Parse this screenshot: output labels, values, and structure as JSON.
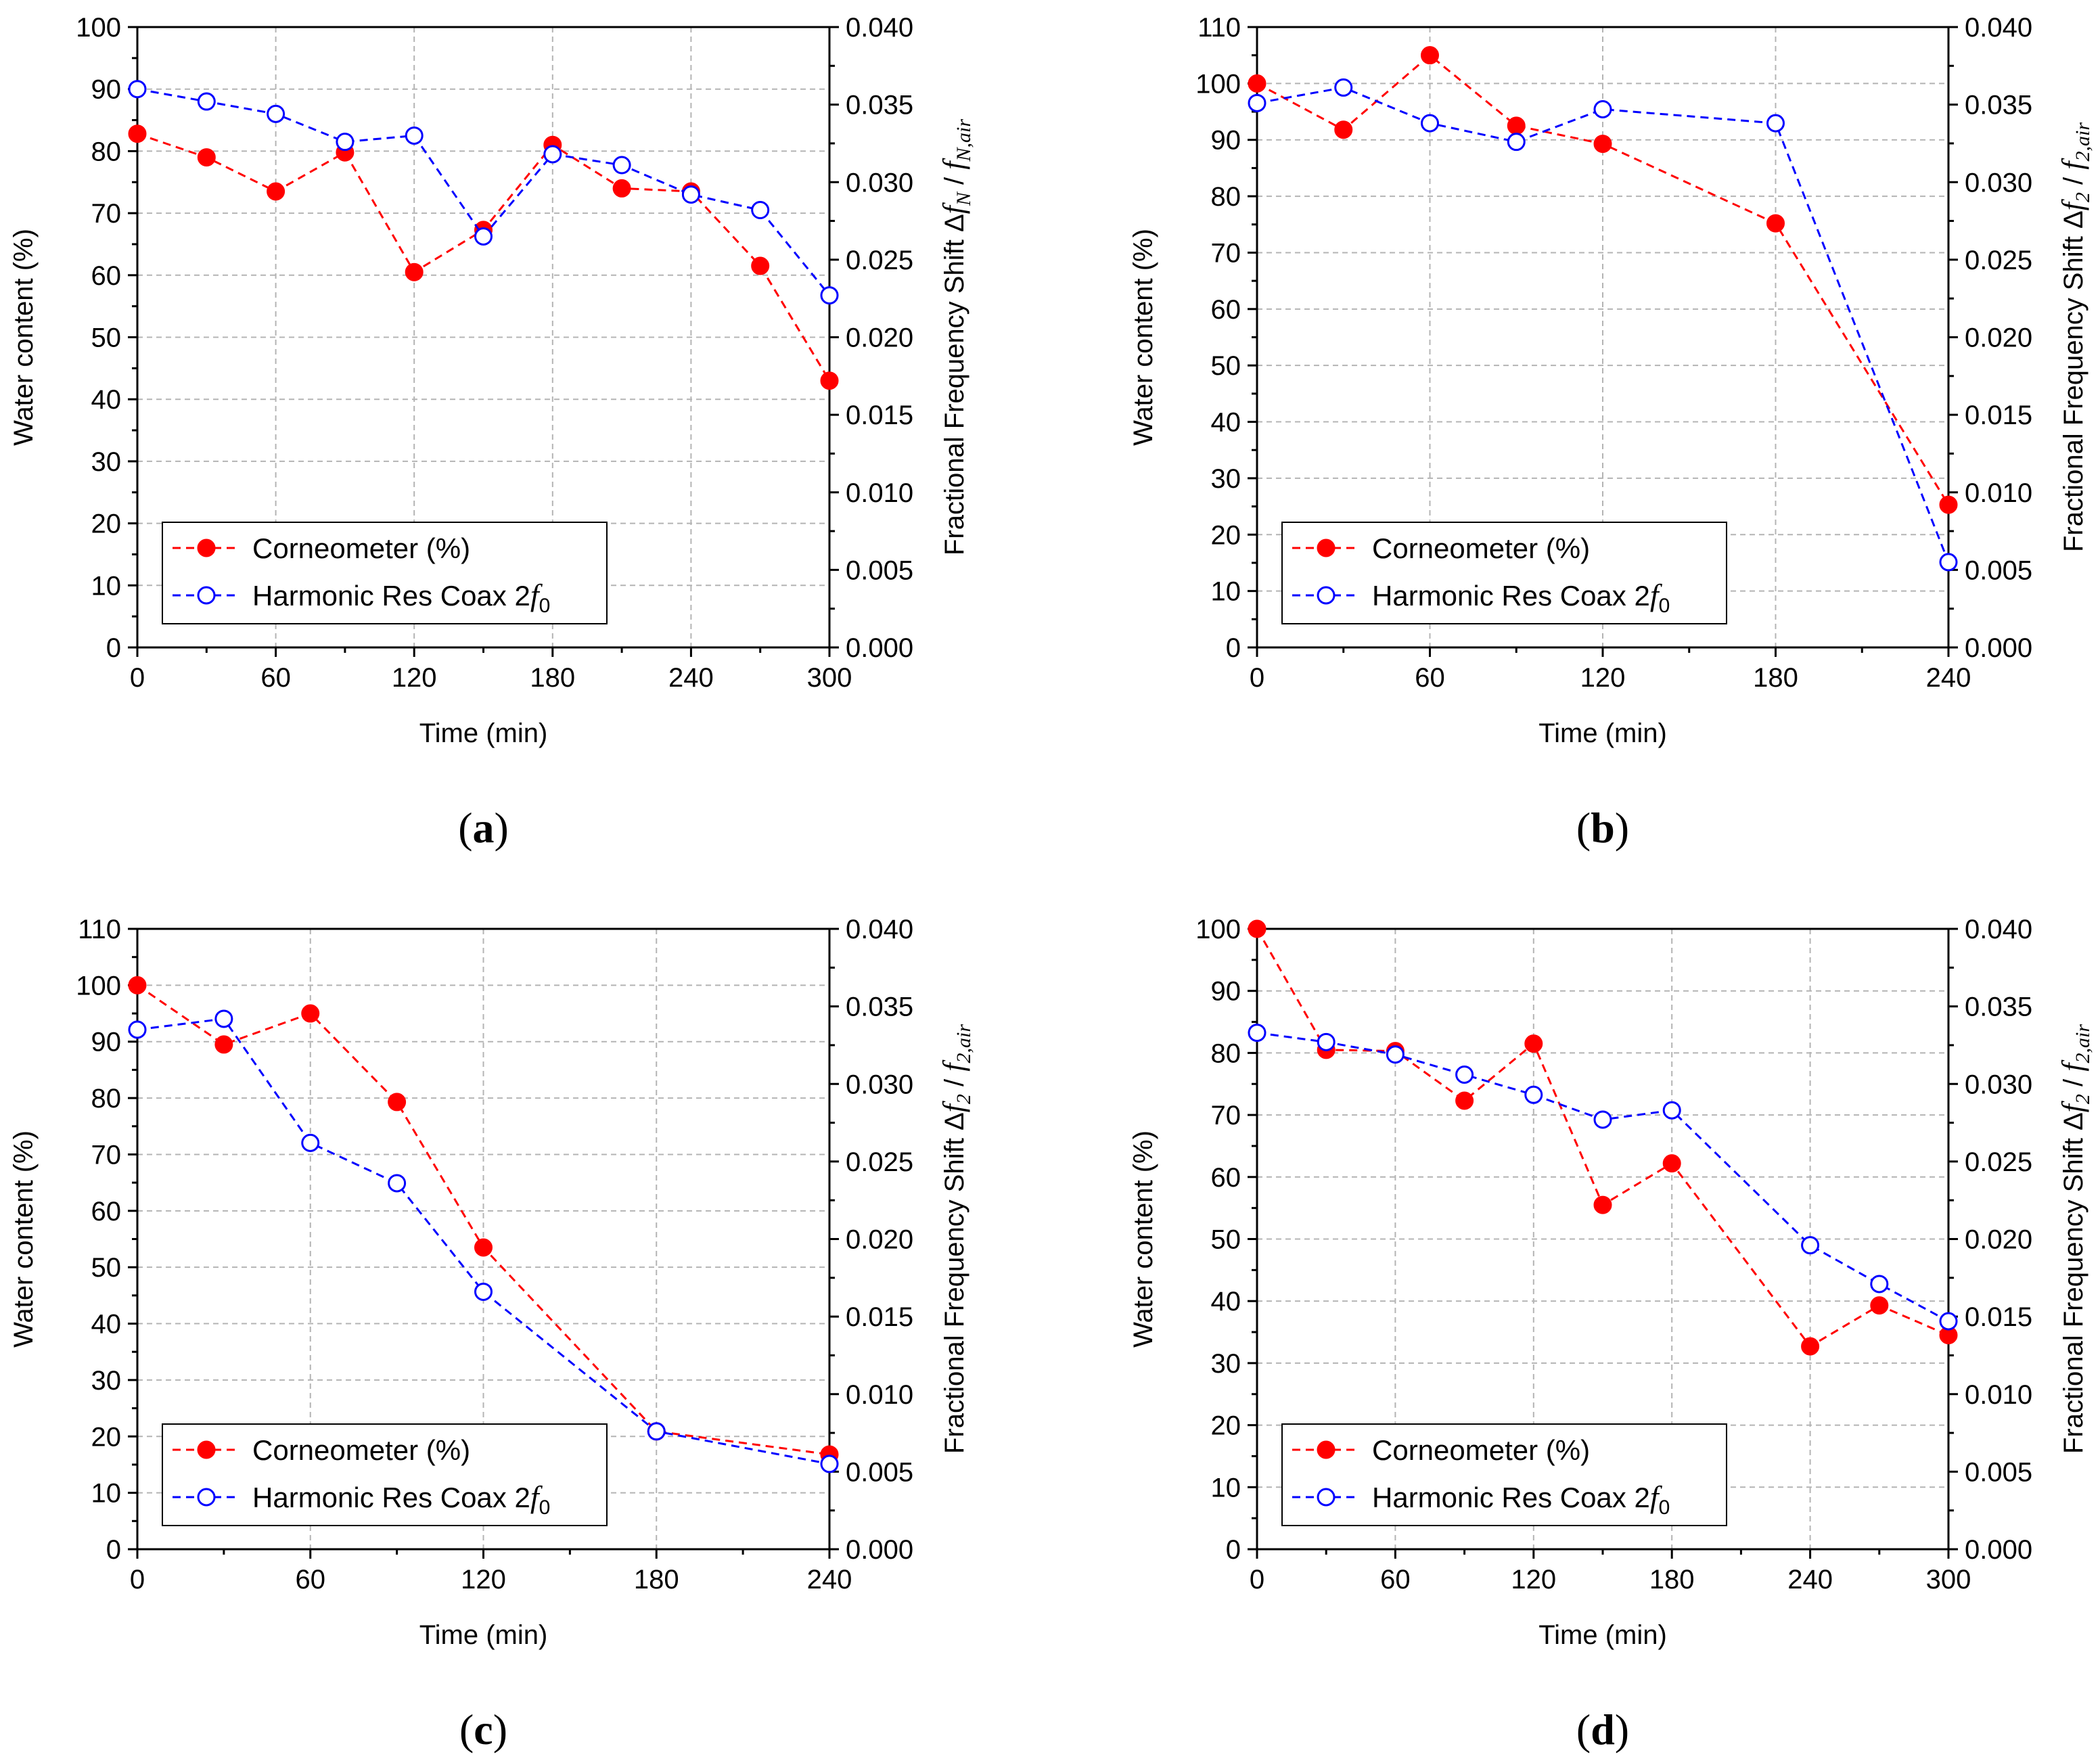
{
  "chart_data": [
    {
      "type": "line",
      "panel_label": "a",
      "xlabel": "Time (min)",
      "ylabel": "Water content (%)",
      "y2label": {
        "prefix": "Fractional Frequency Shift Δ",
        "f1": "f",
        "sub1": "N",
        "sep": " / ",
        "f2": "f",
        "sub2": "N,air"
      },
      "xlim": [
        0,
        300
      ],
      "xticks": [
        0,
        60,
        120,
        180,
        240,
        300
      ],
      "ylim": [
        0,
        100
      ],
      "yticks": [
        0,
        10,
        20,
        30,
        40,
        50,
        60,
        70,
        80,
        90,
        100
      ],
      "y2lim": [
        0,
        0.04
      ],
      "y2ticks": [
        "0.000",
        "0.005",
        "0.010",
        "0.015",
        "0.020",
        "0.025",
        "0.030",
        "0.035",
        "0.040"
      ],
      "grid": true,
      "legend_position": "bottom-left",
      "series": [
        {
          "name": "Corneometer (%)",
          "axis": "left",
          "color": "#ff0000",
          "marker": "filled-circle",
          "x": [
            0,
            30,
            60,
            90,
            120,
            150,
            180,
            210,
            240,
            270,
            300
          ],
          "values": [
            82.8,
            79.0,
            73.5,
            79.8,
            60.5,
            67.3,
            81.0,
            74.0,
            73.5,
            61.5,
            43.0
          ]
        },
        {
          "name": "Harmonic Res Coax 2",
          "name_suffix": "f",
          "name_sub": "0",
          "axis": "right",
          "color": "#0000ff",
          "marker": "open-circle",
          "x": [
            0,
            30,
            60,
            90,
            120,
            150,
            180,
            210,
            240,
            270,
            300
          ],
          "values": [
            0.036,
            0.0352,
            0.0344,
            0.0326,
            0.033,
            0.0265,
            0.0318,
            0.0311,
            0.0292,
            0.0282,
            0.0227
          ]
        }
      ]
    },
    {
      "type": "line",
      "panel_label": "b",
      "xlabel": "Time (min)",
      "ylabel": "Water content (%)",
      "y2label": {
        "prefix": "Fractional Frequency Shift Δ",
        "f1": "f",
        "sub1": "2",
        "sep": " / ",
        "f2": "f",
        "sub2": "2,air"
      },
      "xlim": [
        0,
        240
      ],
      "xticks": [
        0,
        60,
        120,
        180,
        240
      ],
      "ylim": [
        0,
        110
      ],
      "yticks": [
        0,
        10,
        20,
        30,
        40,
        50,
        60,
        70,
        80,
        90,
        100,
        110
      ],
      "y2lim": [
        0,
        0.04
      ],
      "y2ticks": [
        "0.000",
        "0.005",
        "0.010",
        "0.015",
        "0.020",
        "0.025",
        "0.030",
        "0.035",
        "0.040"
      ],
      "grid": true,
      "legend_position": "bottom-left",
      "series": [
        {
          "name": "Corneometer (%)",
          "axis": "left",
          "color": "#ff0000",
          "marker": "filled-circle",
          "x": [
            0,
            30,
            60,
            90,
            120,
            180,
            240
          ],
          "values": [
            100.0,
            91.8,
            105.0,
            92.5,
            89.3,
            75.2,
            25.3
          ]
        },
        {
          "name": "Harmonic Res Coax 2",
          "name_suffix": "f",
          "name_sub": "0",
          "axis": "right",
          "color": "#0000ff",
          "marker": "open-circle",
          "x": [
            0,
            30,
            60,
            90,
            120,
            180,
            240
          ],
          "values": [
            0.0351,
            0.0361,
            0.0338,
            0.0326,
            0.0347,
            0.0338,
            0.0055
          ]
        }
      ]
    },
    {
      "type": "line",
      "panel_label": "c",
      "xlabel": "Time (min)",
      "ylabel": "Water content (%)",
      "y2label": {
        "prefix": "Fractional Frequency Shift Δ",
        "f1": "f",
        "sub1": "2",
        "sep": " / ",
        "f2": "f",
        "sub2": "2,air"
      },
      "xlim": [
        0,
        240
      ],
      "xticks": [
        0,
        60,
        120,
        180,
        240
      ],
      "ylim": [
        0,
        110
      ],
      "yticks": [
        0,
        10,
        20,
        30,
        40,
        50,
        60,
        70,
        80,
        90,
        100,
        110
      ],
      "y2lim": [
        0,
        0.04
      ],
      "y2ticks": [
        "0.000",
        "0.005",
        "0.010",
        "0.015",
        "0.020",
        "0.025",
        "0.030",
        "0.035",
        "0.040"
      ],
      "grid": true,
      "legend_position": "bottom-left",
      "series": [
        {
          "name": "Corneometer (%)",
          "axis": "left",
          "color": "#ff0000",
          "marker": "filled-circle",
          "x": [
            0,
            30,
            60,
            90,
            120,
            180,
            240
          ],
          "values": [
            100.0,
            89.5,
            95.0,
            79.3,
            53.5,
            20.9,
            16.8
          ]
        },
        {
          "name": "Harmonic Res Coax 2",
          "name_suffix": "f",
          "name_sub": "0",
          "axis": "right",
          "color": "#0000ff",
          "marker": "open-circle",
          "x": [
            0,
            30,
            60,
            90,
            120,
            180,
            240
          ],
          "values": [
            0.0335,
            0.0342,
            0.0262,
            0.0236,
            0.0166,
            0.0076,
            0.0055
          ]
        }
      ]
    },
    {
      "type": "line",
      "panel_label": "d",
      "xlabel": "Time (min)",
      "ylabel": "Water content (%)",
      "y2label": {
        "prefix": "Fractional Frequency Shift Δ",
        "f1": "f",
        "sub1": "2",
        "sep": " / ",
        "f2": "f",
        "sub2": "2,air"
      },
      "xlim": [
        0,
        300
      ],
      "xticks": [
        0,
        60,
        120,
        180,
        240,
        300
      ],
      "ylim": [
        0,
        100
      ],
      "yticks": [
        0,
        10,
        20,
        30,
        40,
        50,
        60,
        70,
        80,
        90,
        100
      ],
      "y2lim": [
        0,
        0.04
      ],
      "y2ticks": [
        "0.000",
        "0.005",
        "0.010",
        "0.015",
        "0.020",
        "0.025",
        "0.030",
        "0.035",
        "0.040"
      ],
      "grid": true,
      "legend_position": "bottom-left",
      "series": [
        {
          "name": "Corneometer (%)",
          "axis": "left",
          "color": "#ff0000",
          "marker": "filled-circle",
          "x": [
            0,
            30,
            60,
            90,
            120,
            150,
            180,
            240,
            270,
            300
          ],
          "values": [
            100.0,
            80.5,
            80.3,
            72.3,
            81.5,
            55.5,
            62.2,
            32.7,
            39.3,
            34.5
          ]
        },
        {
          "name": "Harmonic Res Coax 2",
          "name_suffix": "f",
          "name_sub": "0",
          "axis": "right",
          "color": "#0000ff",
          "marker": "open-circle",
          "x": [
            0,
            30,
            60,
            90,
            120,
            150,
            180,
            240,
            270,
            300
          ],
          "values": [
            0.0333,
            0.0327,
            0.0319,
            0.0306,
            0.0293,
            0.0277,
            0.0283,
            0.0196,
            0.0171,
            0.0147
          ]
        }
      ]
    }
  ]
}
